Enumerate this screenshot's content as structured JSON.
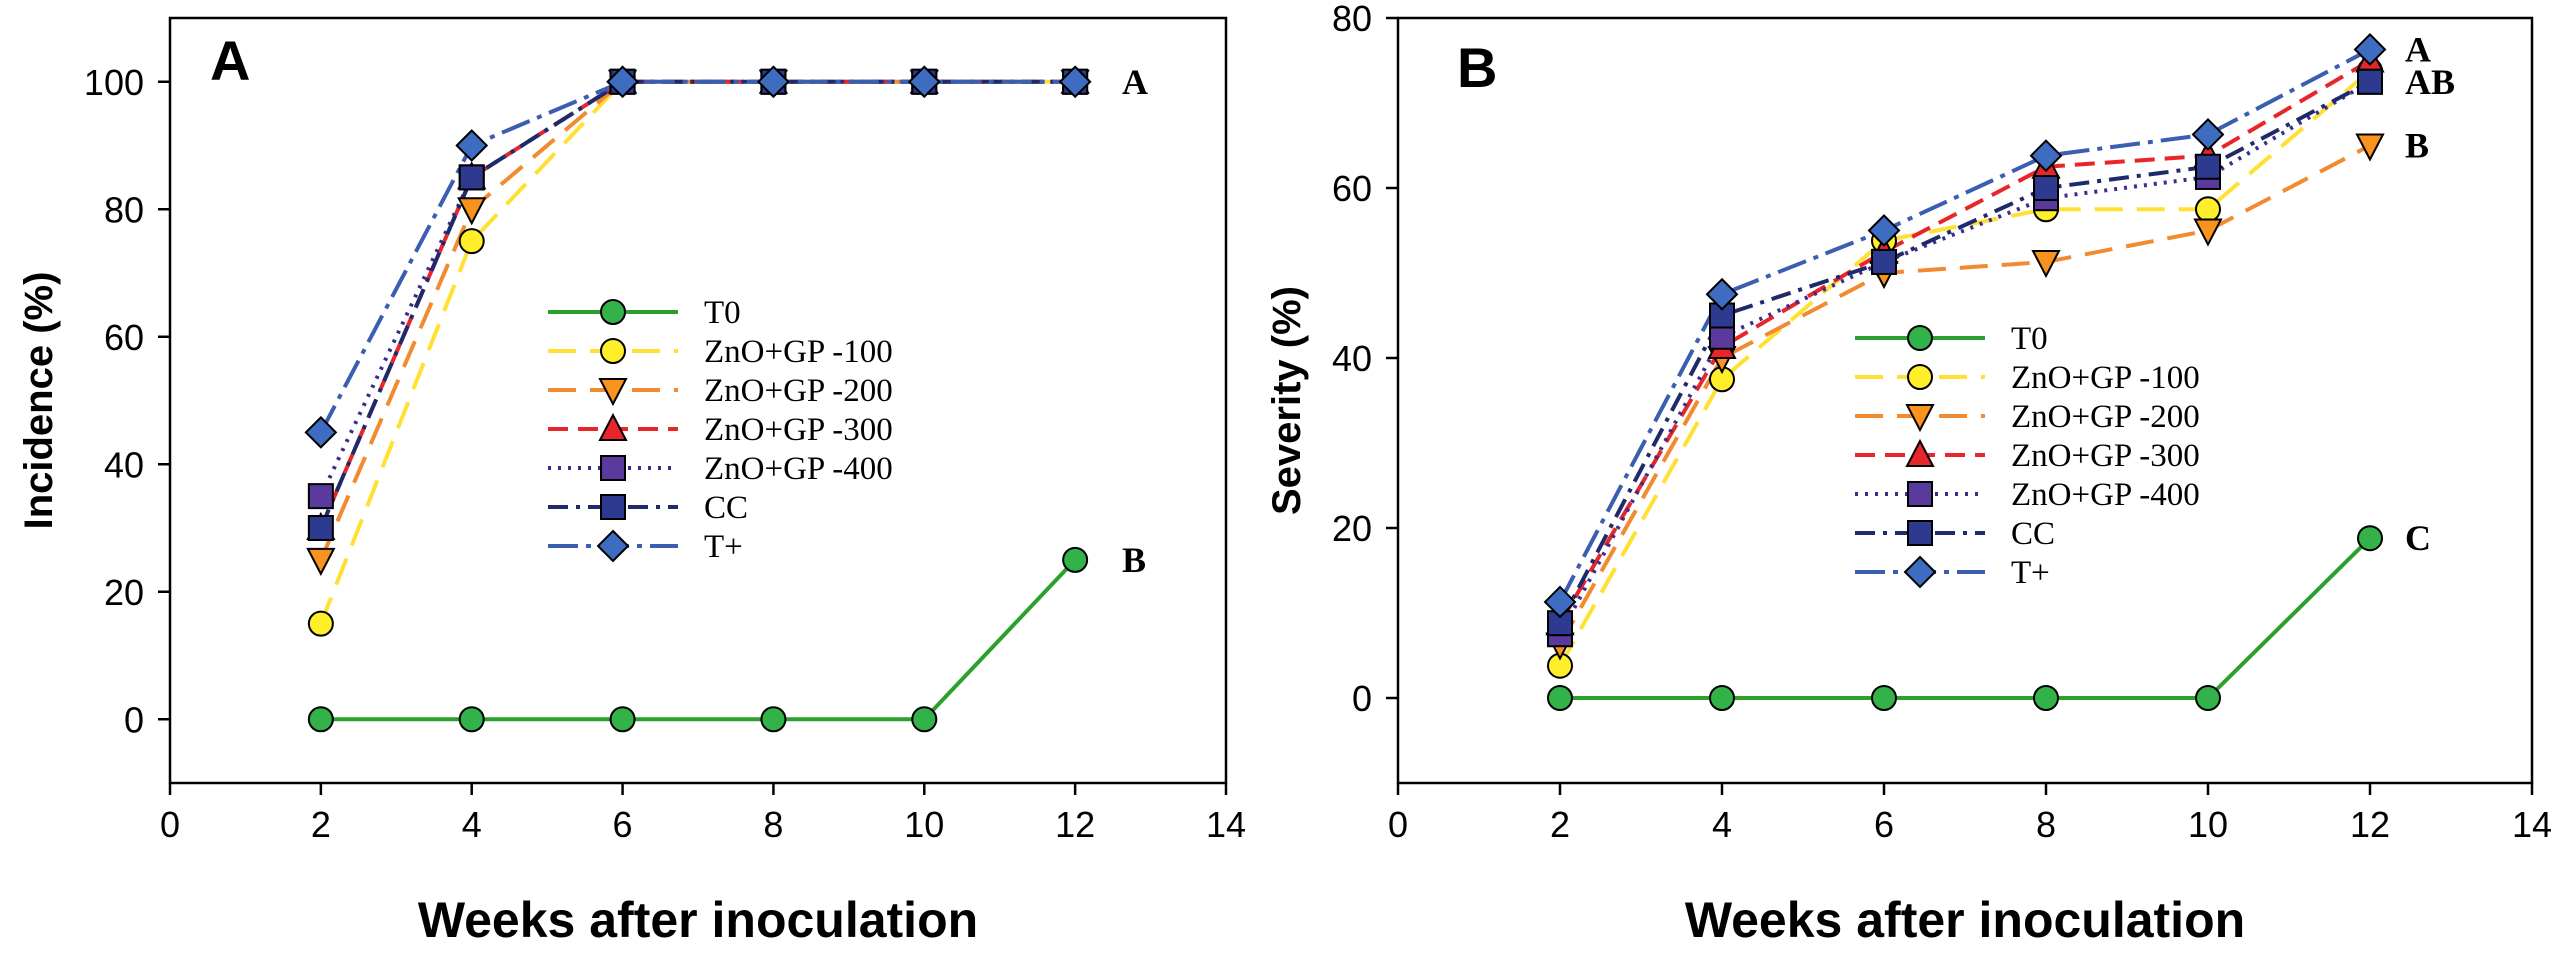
{
  "chart_data": [
    {
      "type": "line",
      "panel_label": "A",
      "title": "",
      "xlabel": "Weeks after inoculation",
      "ylabel": "Incidence (%)",
      "xlim": [
        0,
        14
      ],
      "ylim": [
        -10,
        110
      ],
      "xticks": [
        0,
        2,
        4,
        6,
        8,
        10,
        12,
        14
      ],
      "yticks": [
        0,
        20,
        40,
        60,
        80,
        100
      ],
      "x": [
        2,
        4,
        6,
        8,
        10,
        12
      ],
      "legend_position": "center",
      "series": [
        {
          "name": "T0",
          "values": [
            0,
            0,
            0,
            0,
            0,
            25
          ],
          "color": "#2ca02c",
          "dash": "solid",
          "marker": "circle",
          "marker_color": "#33b24a"
        },
        {
          "name": "ZnO+GP -100",
          "values": [
            15,
            75,
            100,
            100,
            100,
            100
          ],
          "color": "#ffe033",
          "dash": "long-dash",
          "marker": "circle",
          "marker_color": "#ffee2a"
        },
        {
          "name": "ZnO+GP -200",
          "values": [
            25,
            80,
            100,
            100,
            100,
            100
          ],
          "color": "#f28a30",
          "dash": "long-dash",
          "marker": "triangle-down",
          "marker_color": "#f7931e"
        },
        {
          "name": "ZnO+GP -300",
          "values": [
            30,
            85,
            100,
            100,
            100,
            100
          ],
          "color": "#e8252a",
          "dash": "dash",
          "marker": "triangle-up",
          "marker_color": "#e8252a"
        },
        {
          "name": "ZnO+GP -400",
          "values": [
            35,
            85,
            100,
            100,
            100,
            100
          ],
          "color": "#3b2d8c",
          "dash": "dot",
          "marker": "square",
          "marker_color": "#5b3a9e"
        },
        {
          "name": "CC",
          "values": [
            30,
            85,
            100,
            100,
            100,
            100
          ],
          "color": "#1f2a6b",
          "dash": "dash-dot",
          "marker": "square",
          "marker_color": "#2e3a8f"
        },
        {
          "name": "T+",
          "values": [
            45,
            90,
            100,
            100,
            100,
            100
          ],
          "color": "#3a5fb0",
          "dash": "long-dash-dot",
          "marker": "diamond",
          "marker_color": "#3d6cc0"
        }
      ],
      "annotations": [
        {
          "text": "A",
          "x": 12,
          "y": 100
        },
        {
          "text": "B",
          "x": 12,
          "y": 25
        }
      ]
    },
    {
      "type": "line",
      "panel_label": "B",
      "title": "",
      "xlabel": "Weeks after inoculation",
      "ylabel": "Severity (%)",
      "xlim": [
        0,
        14
      ],
      "ylim": [
        -10,
        80
      ],
      "xticks": [
        0,
        2,
        4,
        6,
        8,
        10,
        12,
        14
      ],
      "yticks": [
        0,
        20,
        40,
        60,
        80
      ],
      "x": [
        2,
        4,
        6,
        8,
        10,
        12
      ],
      "legend_position": "center",
      "series": [
        {
          "name": "T0",
          "values": [
            0,
            0,
            0,
            0,
            0,
            18.8
          ],
          "color": "#2ca02c",
          "dash": "solid",
          "marker": "circle",
          "marker_color": "#33b24a"
        },
        {
          "name": "ZnO+GP -100",
          "values": [
            3.8,
            37.5,
            53.8,
            57.5,
            57.5,
            73.8
          ],
          "color": "#ffe033",
          "dash": "long-dash",
          "marker": "circle",
          "marker_color": "#ffee2a"
        },
        {
          "name": "ZnO+GP -200",
          "values": [
            6.3,
            40,
            50,
            51.3,
            55,
            65
          ],
          "color": "#f28a30",
          "dash": "long-dash",
          "marker": "triangle-down",
          "marker_color": "#f7931e"
        },
        {
          "name": "ZnO+GP -300",
          "values": [
            8.8,
            41.3,
            52.5,
            62.5,
            63.8,
            75
          ],
          "color": "#e8252a",
          "dash": "dash",
          "marker": "triangle-up",
          "marker_color": "#e8252a"
        },
        {
          "name": "ZnO+GP -400",
          "values": [
            7.5,
            42.5,
            51.3,
            58.8,
            61.3,
            72.5
          ],
          "color": "#3b2d8c",
          "dash": "dot",
          "marker": "square",
          "marker_color": "#5b3a9e"
        },
        {
          "name": "CC",
          "values": [
            8.8,
            45,
            51.3,
            60,
            62.5,
            72.5
          ],
          "color": "#1f2a6b",
          "dash": "dash-dot",
          "marker": "square",
          "marker_color": "#2e3a8f"
        },
        {
          "name": "T+",
          "values": [
            11.3,
            47.5,
            55,
            63.8,
            66.3,
            76.3
          ],
          "color": "#3a5fb0",
          "dash": "long-dash-dot",
          "marker": "diamond",
          "marker_color": "#3d6cc0"
        }
      ],
      "annotations": [
        {
          "text": "A",
          "x": 12,
          "y": 76.3
        },
        {
          "text": "AB",
          "x": 12,
          "y": 72.5
        },
        {
          "text": "B",
          "x": 12,
          "y": 65
        },
        {
          "text": "C",
          "x": 12,
          "y": 18.8
        }
      ]
    }
  ]
}
